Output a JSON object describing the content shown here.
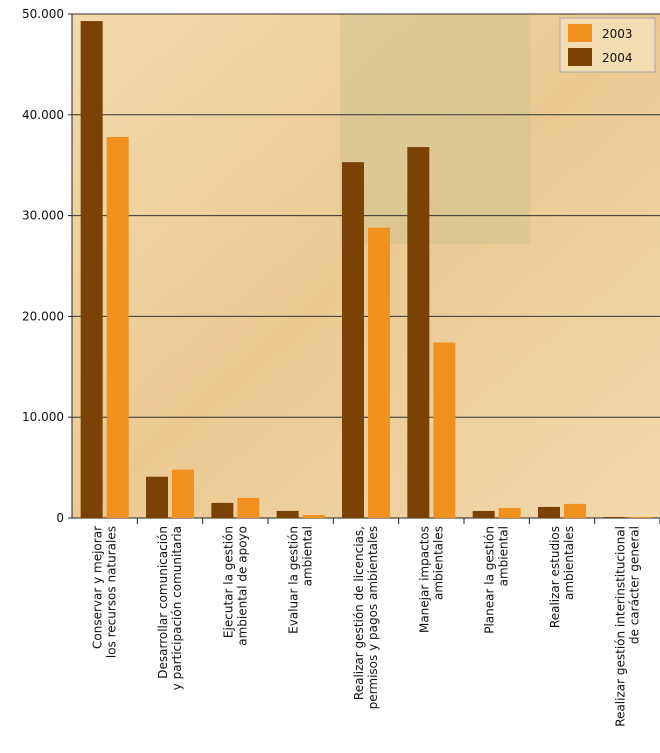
{
  "chart_data": {
    "type": "bar",
    "categories": [
      [
        "Conservar y mejorar",
        "los recursos naturales"
      ],
      [
        "Desarrollar comunicación",
        "y participación comunitaria"
      ],
      [
        "Ejecutar la gestión",
        "ambiental de apoyo"
      ],
      [
        "Evaluar la gestión",
        "ambiental"
      ],
      [
        "Realizar gestión de licencias,",
        "permisos y pagos ambientales"
      ],
      [
        "Manejar impactos",
        "ambientales"
      ],
      [
        "Planear la gestión",
        "ambiental"
      ],
      [
        "Realizar estudios",
        "ambientales"
      ],
      [
        "Realizar gestión interinstitucional",
        "de carácter general"
      ]
    ],
    "series": [
      {
        "name": "2003",
        "color": "#f0901e",
        "values": [
          37800,
          4800,
          2000,
          300,
          28800,
          17400,
          1000,
          1400,
          100
        ]
      },
      {
        "name": "2004",
        "color": "#7a4205",
        "values": [
          49300,
          4100,
          1500,
          700,
          35300,
          36800,
          700,
          1100,
          100
        ]
      }
    ],
    "ylim": [
      0,
      50000
    ],
    "yticks": [
      0,
      {
        "value": 10000,
        "label": "10.000"
      },
      {
        "value": 20000,
        "label": "20.000"
      },
      {
        "value": 30000,
        "label": "30.000"
      },
      {
        "value": 40000,
        "label": "40.000"
      },
      {
        "value": 50000,
        "label": "50.000"
      }
    ],
    "grid": true,
    "legend": "top-right"
  }
}
